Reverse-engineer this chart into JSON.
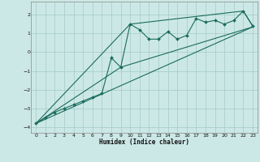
{
  "xlabel": "Humidex (Indice chaleur)",
  "xlim": [
    -0.5,
    23.5
  ],
  "ylim": [
    -4.3,
    2.7
  ],
  "yticks": [
    -4,
    -3,
    -2,
    -1,
    0,
    1,
    2
  ],
  "xticks": [
    0,
    1,
    2,
    3,
    4,
    5,
    6,
    7,
    8,
    9,
    10,
    11,
    12,
    13,
    14,
    15,
    16,
    17,
    18,
    19,
    20,
    21,
    22,
    23
  ],
  "bg_color": "#cce8e6",
  "grid_color": "#aacfcc",
  "line_color": "#1a6b5e",
  "main_x": [
    0,
    1,
    2,
    3,
    4,
    5,
    6,
    7,
    8,
    9,
    10,
    11,
    12,
    13,
    14,
    15,
    16,
    17,
    18,
    19,
    20,
    21,
    22,
    23
  ],
  "main_y": [
    -3.8,
    -3.5,
    -3.2,
    -3.0,
    -2.8,
    -2.6,
    -2.4,
    -2.2,
    -0.3,
    -0.8,
    1.5,
    1.2,
    0.7,
    0.7,
    1.1,
    0.7,
    0.9,
    1.8,
    1.6,
    1.7,
    1.5,
    1.7,
    2.2,
    1.4
  ],
  "reg_line_x": [
    0,
    23
  ],
  "reg_line_y": [
    -3.8,
    1.35
  ],
  "seg_line2_x": [
    0,
    9,
    23
  ],
  "seg_line2_y": [
    -3.8,
    -0.8,
    1.35
  ],
  "seg_line3_x": [
    0,
    10,
    22,
    23
  ],
  "seg_line3_y": [
    -3.8,
    1.5,
    2.2,
    1.4
  ]
}
